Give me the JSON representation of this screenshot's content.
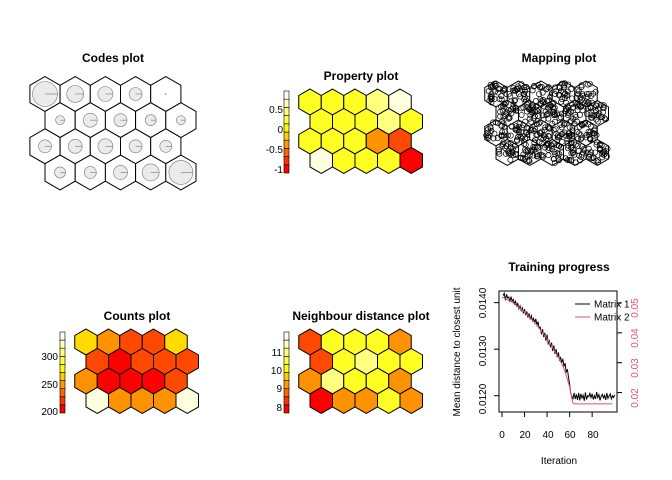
{
  "colors": {
    "heat": [
      "#FF0000",
      "#FF4900",
      "#FF9200",
      "#FFDB00",
      "#FFFF24",
      "#FFFF80",
      "#FFFFDF"
    ],
    "legend_ramp": [
      "#FF0000",
      "#FF3300",
      "#FF6600",
      "#FF9900",
      "#FFCC00",
      "#FFFF00",
      "#FFFF40",
      "#FFFF80",
      "#FFFFBF",
      "#FFFFEF"
    ],
    "matrix1": "#000000",
    "matrix2": "#DF536B",
    "segment_fill": "#EBEBEB"
  },
  "chart_data": [
    {
      "type": "heatmap",
      "title": "Codes plot",
      "grid": {
        "cols": 5,
        "rows": 4,
        "topology": "hexagonal"
      },
      "codes": [
        [
          0.95,
          0.55,
          0.45,
          0.35,
          0.0
        ],
        [
          0.15,
          0.4,
          0.35,
          0.25,
          0.15
        ],
        [
          0.35,
          0.4,
          0.45,
          0.35,
          0.3
        ],
        [
          0.25,
          0.3,
          0.4,
          0.55,
          0.9
        ]
      ]
    },
    {
      "type": "heatmap",
      "title": "Property plot",
      "legend_ticks": [
        "0.5",
        "0",
        "-0.5",
        "-1"
      ],
      "legend_range": [
        -1.1,
        0.95
      ],
      "values": [
        [
          0.95,
          0.3,
          0.3,
          0.3,
          -1.0
        ],
        [
          0.3,
          0.3,
          0.3,
          -0.5,
          -0.7
        ],
        [
          0.3,
          0.3,
          0.3,
          0.5,
          0.3
        ],
        [
          0.3,
          0.3,
          0.3,
          0.5,
          0.95
        ]
      ]
    },
    {
      "type": "scatter",
      "title": "Mapping plot",
      "grid": {
        "cols": 5,
        "rows": 4
      },
      "points_per_unit": [
        [
          30,
          30,
          25,
          25,
          25
        ],
        [
          30,
          30,
          30,
          30,
          30
        ],
        [
          25,
          30,
          30,
          30,
          30
        ],
        [
          25,
          30,
          30,
          30,
          30
        ]
      ]
    },
    {
      "type": "heatmap",
      "title": "Counts plot",
      "legend_ticks": [
        "300",
        "250",
        "200"
      ],
      "legend_range": [
        195,
        345
      ],
      "values": [
        [
          330,
          240,
          240,
          240,
          340
        ],
        [
          245,
          205,
          205,
          205,
          225
        ],
        [
          230,
          205,
          225,
          230,
          225
        ],
        [
          265,
          240,
          225,
          225,
          280
        ]
      ]
    },
    {
      "type": "heatmap",
      "title": "Neighbour distance plot",
      "legend_ticks": [
        "11",
        "10",
        "9",
        "8"
      ],
      "legend_range": [
        7.5,
        12.3
      ],
      "values": [
        [
          7.5,
          9.5,
          9.5,
          10.5,
          9.5
        ],
        [
          9.5,
          11.5,
          10.5,
          10.5,
          9.5
        ],
        [
          8.5,
          10.5,
          11.5,
          10.5,
          10.5
        ],
        [
          8.5,
          10.5,
          10.5,
          10.5,
          9.5
        ]
      ]
    },
    {
      "type": "line",
      "title": "Training progress",
      "xlabel": "Iteration",
      "ylabel": "Mean distance to closest unit",
      "xlim": [
        0,
        100
      ],
      "ylim_left": [
        0.01165,
        0.01425
      ],
      "ylim_right": [
        0.0135,
        0.054
      ],
      "x_ticks": [
        "0",
        "20",
        "40",
        "60",
        "80"
      ],
      "y_ticks_left": [
        "0.0120",
        "0.0130",
        "0.0140"
      ],
      "y_ticks_right": [
        "0.02",
        "0.03",
        "0.04",
        "0.05"
      ],
      "legend": [
        "Matrix 1",
        "Matrix 2"
      ],
      "series": [
        {
          "name": "Matrix 1",
          "axis": "left",
          "x": [
            1,
            2,
            3,
            4,
            5,
            6,
            7,
            8,
            9,
            10,
            11,
            12,
            13,
            14,
            15,
            16,
            17,
            18,
            19,
            20,
            21,
            22,
            23,
            24,
            25,
            26,
            27,
            28,
            29,
            30,
            31,
            32,
            33,
            34,
            35,
            36,
            37,
            38,
            39,
            40,
            41,
            42,
            43,
            44,
            45,
            46,
            47,
            48,
            49,
            50,
            51,
            52,
            53,
            54,
            55,
            56,
            57,
            58,
            59,
            60,
            61,
            62,
            63,
            64,
            65,
            66,
            67,
            68,
            69,
            70,
            71,
            72,
            73,
            74,
            75,
            76,
            77,
            78,
            79,
            80,
            81,
            82,
            83,
            84,
            85,
            86,
            87,
            88,
            89,
            90,
            91,
            92,
            93,
            94,
            95,
            96,
            97,
            98,
            99,
            100
          ],
          "values": [
            0.01415,
            0.0142,
            0.01405,
            0.01418,
            0.0141,
            0.01412,
            0.01402,
            0.01413,
            0.01403,
            0.01407,
            0.01397,
            0.01403,
            0.01393,
            0.01398,
            0.01387,
            0.01393,
            0.01383,
            0.01389,
            0.01377,
            0.01386,
            0.01373,
            0.01381,
            0.01368,
            0.01377,
            0.01364,
            0.01372,
            0.01361,
            0.01366,
            0.01357,
            0.01365,
            0.01352,
            0.01359,
            0.01345,
            0.01347,
            0.01332,
            0.01343,
            0.01326,
            0.01335,
            0.01318,
            0.01331,
            0.01312,
            0.01318,
            0.01304,
            0.01314,
            0.01296,
            0.01308,
            0.0129,
            0.013,
            0.01283,
            0.01293,
            0.01277,
            0.01282,
            0.01272,
            0.01278,
            0.01263,
            0.0127,
            0.0125,
            0.01257,
            0.0124,
            0.01225,
            0.01205,
            0.01198,
            0.01194,
            0.01206,
            0.01193,
            0.01203,
            0.01191,
            0.01206,
            0.0119,
            0.01204,
            0.01195,
            0.01201,
            0.01189,
            0.01207,
            0.01192,
            0.012,
            0.01198,
            0.01205,
            0.01196,
            0.01204,
            0.01192,
            0.012,
            0.01193,
            0.01208,
            0.01196,
            0.01202,
            0.0119,
            0.01199,
            0.01203,
            0.01195,
            0.01201,
            0.01191,
            0.01206,
            0.01194,
            0.01199,
            0.01204,
            0.01193,
            0.012,
            0.01196,
            0.01202
          ]
        },
        {
          "name": "Matrix 2",
          "axis": "right",
          "x": [
            0,
            10,
            20,
            30,
            40,
            50,
            55,
            60,
            62,
            63,
            64,
            70,
            80,
            90,
            98
          ],
          "values": [
            0.052,
            0.05,
            0.047,
            0.043,
            0.038,
            0.032,
            0.028,
            0.022,
            0.018,
            0.0165,
            0.0162,
            0.0162,
            0.0162,
            0.0162,
            0.0162
          ]
        }
      ]
    }
  ]
}
